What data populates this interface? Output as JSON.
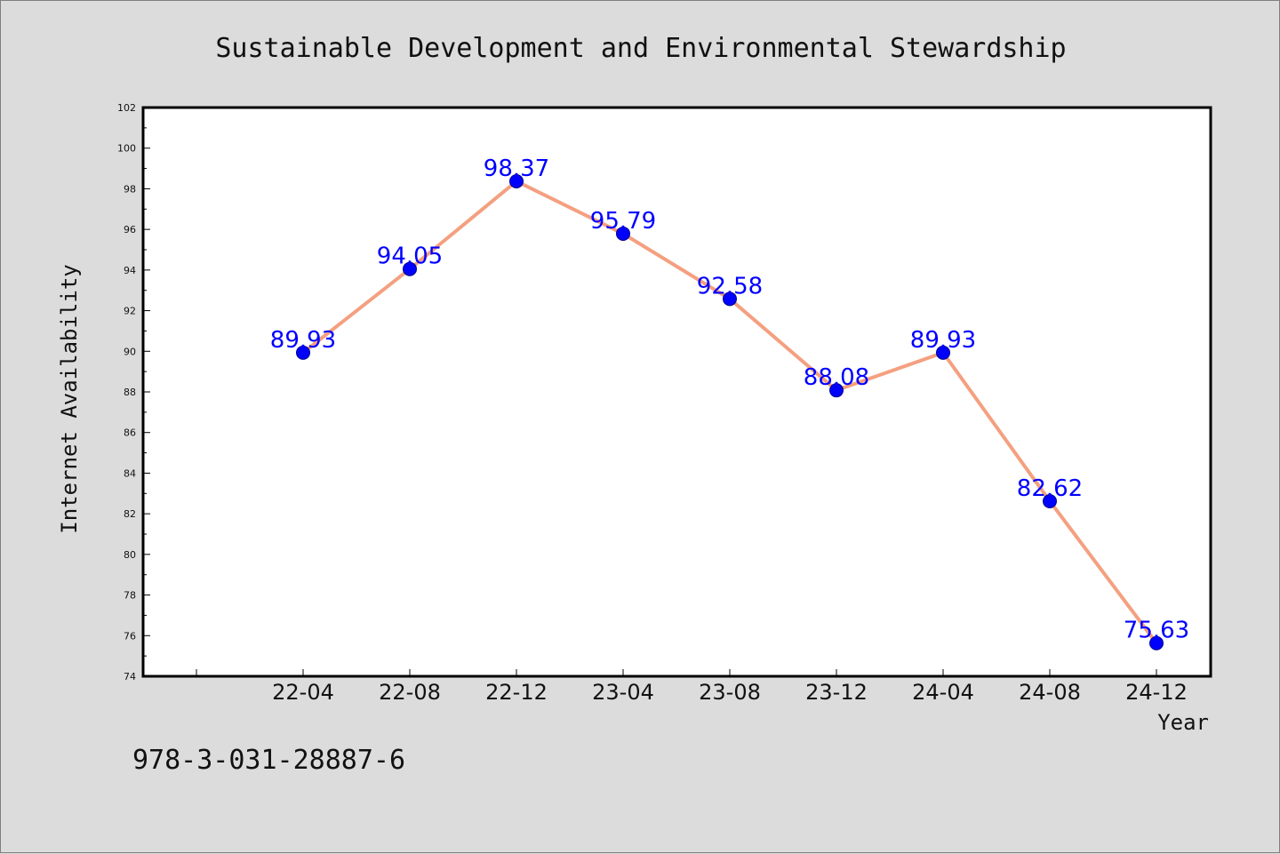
{
  "chart_data": {
    "type": "line",
    "title": "Sustainable Development and Environmental Stewardship",
    "xlabel": "Year",
    "ylabel": "Internet Availability",
    "categories": [
      "22-04",
      "22-08",
      "22-12",
      "23-04",
      "23-08",
      "23-12",
      "24-04",
      "24-08",
      "24-12"
    ],
    "series": [
      {
        "values": [
          89.93,
          94.05,
          98.37,
          95.79,
          92.58,
          88.08,
          89.93,
          82.62,
          75.63
        ]
      }
    ],
    "data_labels": [
      "89.93",
      "94.05",
      "98.37",
      "95.79",
      "92.58",
      "88.08",
      "89.93",
      "82.62",
      "75.63"
    ],
    "ylim": [
      74,
      102
    ],
    "yticks": [
      74,
      76,
      78,
      80,
      82,
      84,
      86,
      88,
      90,
      92,
      94,
      96,
      98,
      100,
      102
    ],
    "grid": false,
    "line_color": "#f4a080",
    "marker_color": "#0000ff",
    "label_color": "#0000ff"
  },
  "footer": {
    "isbn": "978-3-031-28887-6"
  }
}
